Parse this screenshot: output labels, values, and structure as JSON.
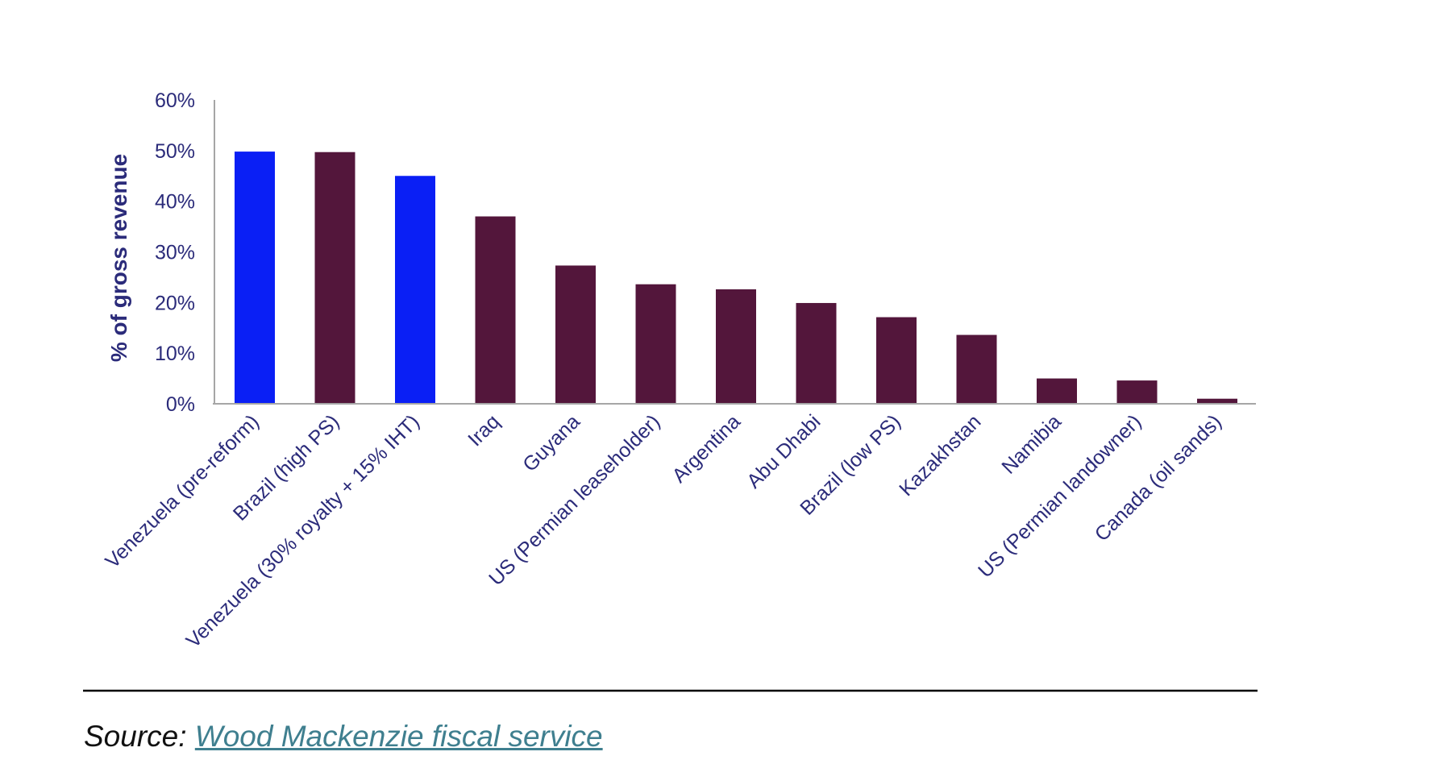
{
  "chart_data": {
    "type": "bar",
    "title": "",
    "xlabel": "",
    "ylabel": "% of gross revenue",
    "ylim": [
      0,
      60
    ],
    "yticks": [
      "0%",
      "10%",
      "20%",
      "30%",
      "40%",
      "50%",
      "60%"
    ],
    "grid": false,
    "categories": [
      "Venezuela (pre-reform)",
      "Brazil (high PS)",
      "Venezuela (30% royalty + 15% IHT)",
      "Iraq",
      "Guyana",
      "US (Permian leaseholder)",
      "Argentina",
      "Abu Dhabi",
      "Brazil (low PS)",
      "Kazakhstan",
      "Namibia",
      "US (Permian landowner)",
      "Canada (oil sands)"
    ],
    "values": [
      49.8,
      49.7,
      45.0,
      37.0,
      27.3,
      23.6,
      22.6,
      19.9,
      17.1,
      13.6,
      5.0,
      4.6,
      1.0
    ],
    "highlight": [
      true,
      false,
      true,
      false,
      false,
      false,
      false,
      false,
      false,
      false,
      false,
      false,
      false
    ]
  },
  "colors": {
    "highlight": "#0a1ff5",
    "default": "#53163b",
    "text": "#2b2b7a",
    "axis": "#a6a6a6",
    "rule": "#000000",
    "link": "#3f7f8f"
  },
  "source": {
    "prefix": "Source: ",
    "link_text": "Wood Mackenzie fiscal service"
  }
}
